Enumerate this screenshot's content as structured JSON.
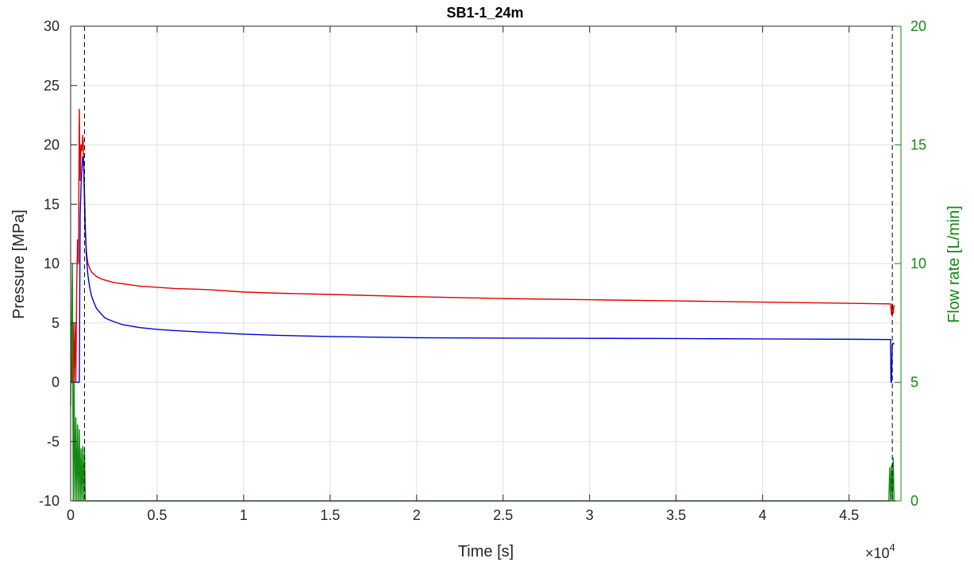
{
  "chart_data": {
    "type": "line",
    "title": "SB1-1_24m",
    "xlabel": "Time [s]",
    "ylabel": "Pressure [MPa]",
    "ylabel_right": "Flow rate [L/min]",
    "x_exponent_label": "×10",
    "x_exponent_power": "4",
    "xlim": [
      0,
      4.8
    ],
    "ylim": [
      -10,
      30
    ],
    "ylim_right": [
      0,
      20
    ],
    "x_ticks": [
      0,
      0.5,
      1,
      1.5,
      2,
      2.5,
      3,
      3.5,
      4,
      4.5
    ],
    "x_tick_labels": [
      "0",
      "0.5",
      "1",
      "1.5",
      "2",
      "2.5",
      "3",
      "3.5",
      "4",
      "4.5"
    ],
    "y_ticks": [
      -10,
      -5,
      0,
      5,
      10,
      15,
      20,
      25,
      30
    ],
    "y_tick_labels": [
      "-10",
      "-5",
      "0",
      "5",
      "10",
      "15",
      "20",
      "25",
      "30"
    ],
    "y_ticks_right": [
      0,
      5,
      10,
      15,
      20
    ],
    "y_tick_labels_right": [
      "0",
      "5",
      "10",
      "15",
      "20"
    ],
    "grid": true,
    "vlines": [
      0.08,
      4.75
    ],
    "colors": {
      "red": "#e00000",
      "blue": "#0000d8",
      "green": "#128a12",
      "axis": "#262626",
      "grid": "#dfdfdf"
    },
    "series": [
      {
        "key": "red",
        "axis": "left",
        "x": [
          0,
          0.001,
          0.002,
          0.003,
          0.004,
          0.005,
          0.006,
          0.007,
          0.008,
          0.009,
          0.01,
          0.012,
          0.015,
          0.018,
          0.02,
          0.025,
          0.03,
          0.035,
          0.04,
          0.045,
          0.05,
          0.055,
          0.06,
          0.065,
          0.07,
          0.073,
          0.076,
          0.08,
          0.083,
          0.086,
          0.09,
          0.095,
          0.1,
          0.11,
          0.12,
          0.135,
          0.15,
          0.18,
          0.2,
          0.25,
          0.3,
          0.4,
          0.5,
          0.6,
          0.8,
          1.0,
          1.2,
          1.5,
          2.0,
          2.5,
          3.0,
          3.5,
          4.0,
          4.5,
          4.73,
          4.74,
          4.745,
          4.75,
          4.755,
          4.76
        ],
        "y": [
          0,
          0.2,
          5,
          0.2,
          0,
          4,
          0.2,
          0,
          0,
          0,
          0,
          2,
          5,
          2,
          0,
          5,
          0,
          8,
          12,
          10,
          23,
          17,
          20,
          19.5,
          20.8,
          20,
          18,
          15,
          13,
          12.2,
          11.2,
          10.5,
          10,
          9.6,
          9.3,
          9.1,
          8.9,
          8.7,
          8.6,
          8.4,
          8.3,
          8.1,
          8.0,
          7.9,
          7.8,
          7.6,
          7.5,
          7.4,
          7.2,
          7.05,
          6.95,
          6.85,
          6.75,
          6.65,
          6.6,
          6.6,
          5.7,
          6.6,
          5.8,
          6.5
        ]
      },
      {
        "key": "blue",
        "axis": "left",
        "x": [
          0,
          0.01,
          0.02,
          0.03,
          0.04,
          0.045,
          0.05,
          0.055,
          0.06,
          0.065,
          0.07,
          0.075,
          0.08,
          0.085,
          0.09,
          0.095,
          0.1,
          0.11,
          0.12,
          0.135,
          0.15,
          0.18,
          0.2,
          0.25,
          0.3,
          0.4,
          0.5,
          0.6,
          0.8,
          1.0,
          1.2,
          1.5,
          2.0,
          2.5,
          3.0,
          3.5,
          4.0,
          4.5,
          4.74,
          4.742,
          4.745,
          4.75,
          4.755,
          4.76
        ],
        "y": [
          0,
          0,
          0,
          0,
          0,
          0,
          0,
          14,
          16.5,
          18,
          19,
          18.5,
          16,
          13,
          11,
          9.8,
          9,
          8,
          7.3,
          6.7,
          6.2,
          5.7,
          5.4,
          5.1,
          4.85,
          4.6,
          4.45,
          4.35,
          4.2,
          4.05,
          3.95,
          3.85,
          3.75,
          3.72,
          3.7,
          3.68,
          3.65,
          3.62,
          3.6,
          0,
          0,
          3.2,
          3.3,
          3.2
        ]
      },
      {
        "key": "green",
        "axis": "right",
        "x": [
          0,
          0.01,
          0.015,
          0.02,
          0.025,
          0.03,
          0.035,
          0.04,
          0.045,
          0.05,
          0.055,
          0.06,
          0.065,
          0.07,
          0.075,
          0.08,
          0.085,
          0.09,
          4.73,
          4.735,
          4.74,
          4.745,
          4.75,
          4.755,
          4.76,
          4.77
        ],
        "y": [
          4,
          10,
          0,
          5,
          0,
          3.5,
          0,
          3.2,
          0,
          3,
          0,
          2.2,
          0,
          2.3,
          0,
          2.2,
          0,
          0,
          0,
          1.4,
          0,
          1.5,
          0,
          1.8,
          0,
          0
        ]
      }
    ]
  }
}
